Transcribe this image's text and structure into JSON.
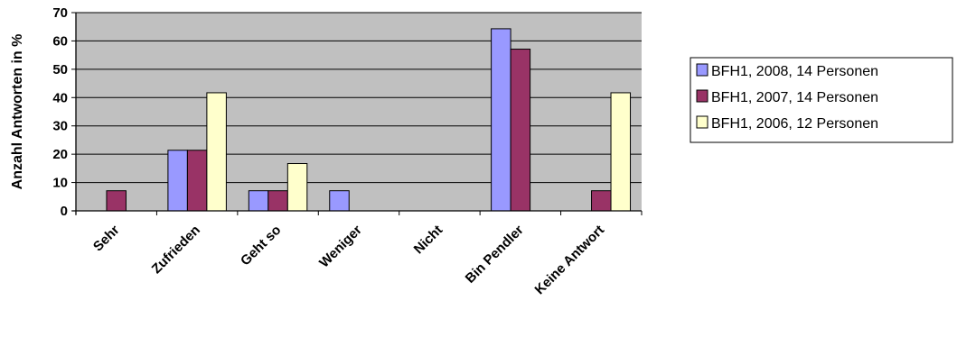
{
  "chart_data": {
    "type": "bar",
    "title": "",
    "xlabel": "",
    "ylabel": "Anzahl Antworten in %",
    "ylim": [
      0,
      70
    ],
    "yticks": [
      0,
      10,
      20,
      30,
      40,
      50,
      60,
      70
    ],
    "grid": true,
    "legend_position": "right",
    "categories": [
      "Sehr",
      "Zufrieden",
      "Geht so",
      "Weniger",
      "Nicht",
      "Bin Pendler",
      "Keine Antwort"
    ],
    "series": [
      {
        "name": "BFH1,  2008,  14 Personen",
        "color": "#9999ff",
        "values": [
          0,
          21.4,
          7.1,
          7.1,
          0,
          64.3,
          0
        ]
      },
      {
        "name": "BFH1,  2007,  14 Personen",
        "color": "#993366",
        "values": [
          7.1,
          21.4,
          7.1,
          0,
          0,
          57.1,
          7.1
        ]
      },
      {
        "name": "BFH1,  2006,  12 Personen",
        "color": "#ffffcc",
        "values": [
          0,
          41.7,
          16.7,
          0,
          0,
          0,
          41.7
        ]
      }
    ],
    "plot_background": "#c0c0c0"
  }
}
